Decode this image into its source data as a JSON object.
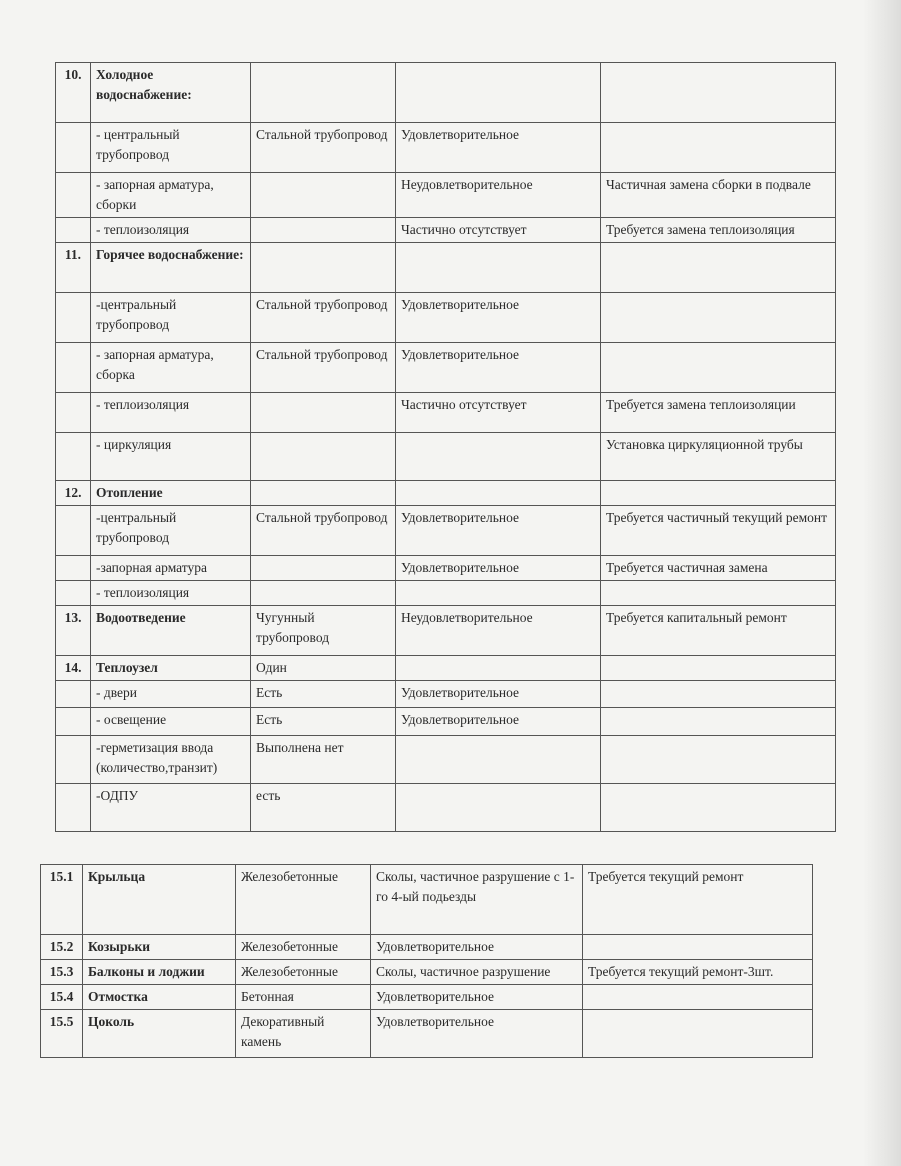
{
  "table1": {
    "rows": [
      {
        "num": "10.",
        "name": "Холодное водоснабжение:",
        "bold": true,
        "material": "",
        "state": "",
        "recommendation": ""
      },
      {
        "num": "",
        "name": "- центральный трубопровод",
        "material": "Стальной трубопровод",
        "state": "Удовлетворительное",
        "recommendation": ""
      },
      {
        "num": "",
        "name": "- запорная арматура, сборки",
        "material": "",
        "state": "Неудовлетворительное",
        "recommendation": "Частичная замена сборки в подвале"
      },
      {
        "num": "",
        "name": "- теплоизоляция",
        "material": "",
        "state": "Частично отсутствует",
        "recommendation": "Требуется замена теплоизоляция"
      },
      {
        "num": "11.",
        "name": "Горячее водоснабжение:",
        "bold": true,
        "material": "",
        "state": "",
        "recommendation": ""
      },
      {
        "num": "",
        "name": "-центральный трубопровод",
        "material": "Стальной трубопровод",
        "state": "Удовлетворительное",
        "recommendation": ""
      },
      {
        "num": "",
        "name": "- запорная арматура, сборка",
        "material": "Стальной трубопровод",
        "state": "Удовлетворительное",
        "recommendation": ""
      },
      {
        "num": "",
        "name": "- теплоизоляция",
        "material": "",
        "state": "Частично отсутствует",
        "recommendation": "Требуется замена теплоизоляции"
      },
      {
        "num": "",
        "name": "- циркуляция",
        "material": "",
        "state": "",
        "recommendation": "Установка циркуляционной трубы"
      },
      {
        "num": "12.",
        "name": "Отопление",
        "bold": true,
        "material": "",
        "state": "",
        "recommendation": ""
      },
      {
        "num": "",
        "name": "-центральный трубопровод",
        "material": "Стальной трубопровод",
        "state": "Удовлетворительное",
        "recommendation": "Требуется  частичный текущий ремонт"
      },
      {
        "num": "",
        "name": "-запорная арматура",
        "material": "",
        "state": "Удовлетворительное",
        "recommendation": "Требуется частичная замена"
      },
      {
        "num": "",
        "name": "- теплоизоляция",
        "material": "",
        "state": "",
        "recommendation": ""
      },
      {
        "num": "13.",
        "name": "Водоотведение",
        "bold": true,
        "material": "Чугунный трубопровод",
        "state": "Неудовлетворительное",
        "recommendation": "Требуется капитальный ремонт"
      },
      {
        "num": "14.",
        "name": "Теплоузел",
        "bold": true,
        "material": "Один",
        "state": "",
        "recommendation": ""
      },
      {
        "num": "",
        "name": "- двери",
        "material": "Есть",
        "state": "Удовлетворительное",
        "recommendation": ""
      },
      {
        "num": "",
        "name": "- освещение",
        "material": "Есть",
        "state": "Удовлетворительное",
        "recommendation": ""
      },
      {
        "num": "",
        "name": "-герметизация ввода (количество,транзит)",
        "material": "Выполнена нет",
        "state": "",
        "recommendation": ""
      },
      {
        "num": "",
        "name": "-ОДПУ",
        "material": "есть",
        "state": "",
        "recommendation": ""
      }
    ]
  },
  "table2": {
    "rows": [
      {
        "num": "15.1",
        "name": "Крыльца",
        "material": "Железобетонные",
        "state": "Сколы, частичное разрушение с 1-го 4-ый   подьезды",
        "recommendation": "Требуется текущий ремонт"
      },
      {
        "num": "15.2",
        "name": "Козырьки",
        "material": "Железобетонные",
        "state": "Удовлетворительное",
        "recommendation": ""
      },
      {
        "num": "15.3",
        "name": "Балконы и лоджии",
        "material": "Железобетонные",
        "state": "Сколы, частичное разрушение",
        "recommendation": "Требуется текущий ремонт-3шт."
      },
      {
        "num": "15.4",
        "name": "Отмостка",
        "material": "Бетонная",
        "state": "Удовлетворительное",
        "recommendation": ""
      },
      {
        "num": "15.5",
        "name": "Цоколь",
        "material": "Декоративный камень",
        "state": "Удовлетворительное",
        "recommendation": ""
      }
    ]
  }
}
